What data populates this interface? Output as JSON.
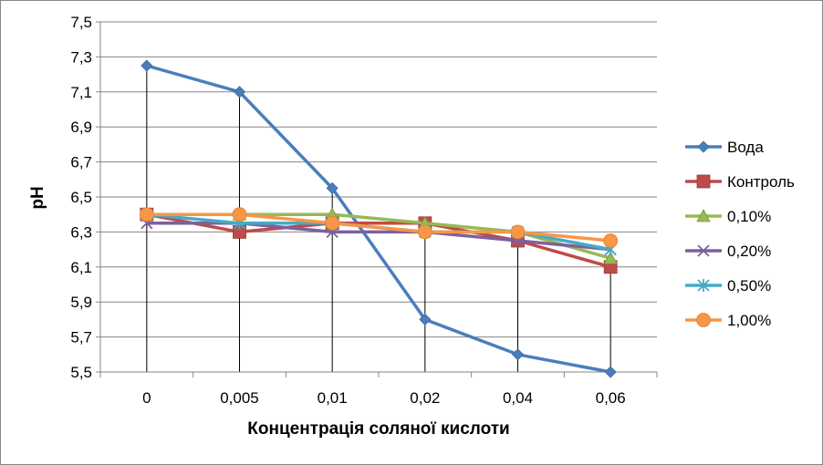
{
  "chart_data": {
    "type": "line",
    "categories": [
      "0",
      "0,005",
      "0,01",
      "0,02",
      "0,04",
      "0,06"
    ],
    "xlabel": "Концентрація соляної кислоти",
    "ylabel": "pH",
    "ylim": [
      5.5,
      7.5
    ],
    "y_ticks": [
      "5,5",
      "5,7",
      "5,9",
      "6,1",
      "6,3",
      "6,5",
      "6,7",
      "6,9",
      "7,1",
      "7,3",
      "7,5"
    ],
    "grid": "horizontal",
    "drop_lines": true,
    "legend_position": "right",
    "series": [
      {
        "name": "Вода",
        "color": "#4a7ebb",
        "marker": "diamond",
        "values": [
          7.25,
          7.1,
          6.55,
          5.8,
          5.6,
          5.5
        ]
      },
      {
        "name": "Контроль",
        "color": "#be4b48",
        "marker": "square",
        "values": [
          6.4,
          6.3,
          6.35,
          6.35,
          6.25,
          6.1
        ]
      },
      {
        "name": "0,10%",
        "color": "#98b954",
        "marker": "triangle",
        "values": [
          6.4,
          6.4,
          6.4,
          6.35,
          6.3,
          6.15
        ]
      },
      {
        "name": "0,20%",
        "color": "#7d60a0",
        "marker": "x",
        "values": [
          6.35,
          6.35,
          6.3,
          6.3,
          6.25,
          6.2
        ]
      },
      {
        "name": "0,50%",
        "color": "#46aac5",
        "marker": "star",
        "values": [
          6.4,
          6.35,
          6.35,
          6.3,
          6.3,
          6.2
        ]
      },
      {
        "name": "1,00%",
        "color": "#f79646",
        "marker": "circle",
        "values": [
          6.4,
          6.4,
          6.35,
          6.3,
          6.3,
          6.25
        ]
      }
    ]
  }
}
